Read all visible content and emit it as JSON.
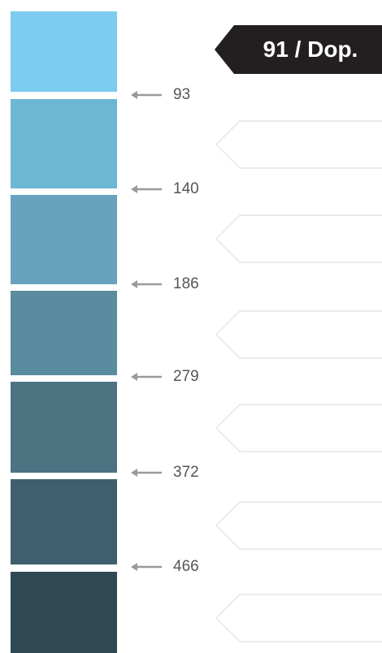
{
  "active_tag": {
    "label": "91 / Dop.",
    "color": "#231f20",
    "text_color": "#ffffff"
  },
  "swatches": [
    {
      "color": "#7ccbf0"
    },
    {
      "color": "#6db6d4"
    },
    {
      "color": "#68a2bd"
    },
    {
      "color": "#5a8c9f"
    },
    {
      "color": "#4d7383"
    },
    {
      "color": "#3f5f6e"
    },
    {
      "color": "#2f4953"
    }
  ],
  "markers": [
    {
      "value": "93"
    },
    {
      "value": "140"
    },
    {
      "value": "186"
    },
    {
      "value": "279"
    },
    {
      "value": "372"
    },
    {
      "value": "466"
    }
  ],
  "tags": [
    {
      "label": ""
    },
    {
      "label": ""
    },
    {
      "label": ""
    },
    {
      "label": ""
    },
    {
      "label": ""
    },
    {
      "label": ""
    }
  ],
  "colors": {
    "arrow": "#9a9a9a",
    "tag_outline": "#ececec"
  }
}
